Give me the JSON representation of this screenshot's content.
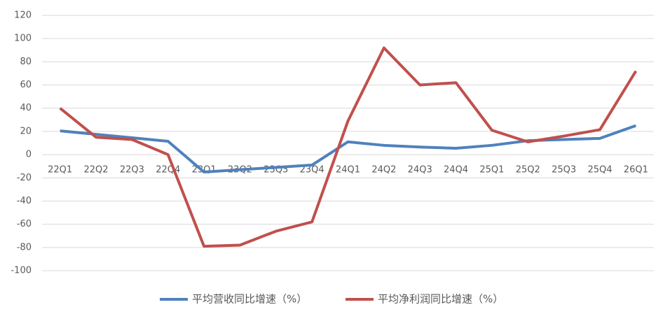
{
  "chart_data": {
    "type": "line",
    "categories": [
      "22Q1",
      "22Q2",
      "22Q3",
      "22Q4",
      "23Q1",
      "23Q2",
      "23Q3",
      "23Q4",
      "24Q1",
      "24Q2",
      "24Q3",
      "24Q4",
      "25Q1",
      "25Q2",
      "25Q3",
      "25Q4",
      "26Q1"
    ],
    "series": [
      {
        "name": "平均营收同比增速（%）",
        "color": "#4f81bd",
        "values": [
          20.5,
          17.5,
          14.5,
          11.5,
          -15,
          -13,
          -11,
          -9,
          11,
          8,
          6.5,
          5.5,
          8,
          12,
          13,
          14,
          25
        ]
      },
      {
        "name": "平均净利润同比增速（%）",
        "color": "#c0504d",
        "values": [
          40,
          15,
          13,
          0,
          -79,
          -78,
          -66,
          -58,
          29,
          92,
          60,
          62,
          21,
          11,
          16,
          21.5,
          72
        ]
      }
    ],
    "ylim": [
      -100,
      120
    ],
    "yticks": [
      -100,
      -80,
      -60,
      -40,
      -20,
      0,
      20,
      40,
      60,
      80,
      100,
      120
    ],
    "grid": true,
    "legend": "bottom"
  }
}
